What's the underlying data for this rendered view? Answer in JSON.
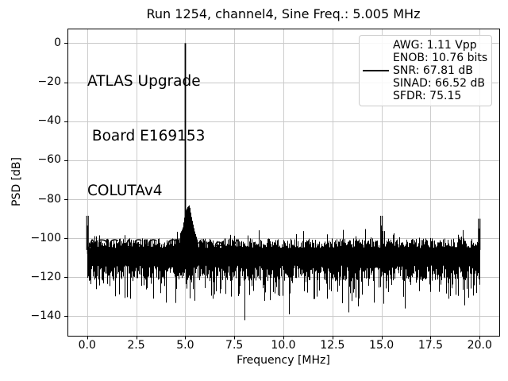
{
  "figure": {
    "background": "#ffffff",
    "text_color": "#000000"
  },
  "chart_data": {
    "type": "line",
    "title": "Run 1254, channel4, Sine Freq.: 5.005 MHz",
    "xlabel": "Frequency [MHz]",
    "ylabel": "PSD [dB]",
    "xlim": [
      -1,
      21
    ],
    "ylim": [
      -150,
      7.5
    ],
    "grid": true,
    "grid_color": "#c8c8c8",
    "line_color": "#000000",
    "xticks": {
      "values": [
        0,
        2.5,
        5,
        7.5,
        10,
        12.5,
        15,
        17.5,
        20
      ],
      "labels": [
        "0.0",
        "2.5",
        "5.0",
        "7.5",
        "10.0",
        "12.5",
        "15.0",
        "17.5",
        "20.0"
      ]
    },
    "yticks": {
      "values": [
        0,
        -20,
        -40,
        -60,
        -80,
        -100,
        -120,
        -140
      ],
      "labels": [
        "0",
        "−20",
        "−40",
        "−60",
        "−80",
        "−100",
        "−120",
        "−140"
      ]
    },
    "signal_peak": {
      "freq_mhz": 5.005,
      "peak_db": 0,
      "skirt_profile": [
        [
          -0.3,
          -98
        ],
        [
          -0.15,
          -95
        ],
        [
          -0.07,
          -90
        ],
        [
          0,
          -86
        ],
        [
          0.1,
          -84
        ],
        [
          0.2,
          -83
        ],
        [
          0.3,
          -89
        ],
        [
          0.45,
          -96
        ],
        [
          0.6,
          -101
        ]
      ]
    },
    "noise_floor": {
      "mean_db": -110,
      "top_db_mean": -102.5,
      "top_db_jitter": 2.5,
      "core_bottom_db": -114,
      "spike_bottom_db_max": -135
    },
    "spurs": [
      {
        "freq_mhz": 0.02,
        "db": -93.5
      },
      {
        "freq_mhz": 15.0,
        "db": -93.5
      },
      {
        "freq_mhz": 19.98,
        "db": -95
      }
    ],
    "deep_dips": [
      {
        "freq_mhz": 2.2,
        "db": -131
      },
      {
        "freq_mhz": 4.0,
        "db": -133
      },
      {
        "freq_mhz": 6.4,
        "db": -131
      },
      {
        "freq_mhz": 8.0,
        "db": -142
      },
      {
        "freq_mhz": 10.3,
        "db": -139
      },
      {
        "freq_mhz": 13.3,
        "db": -138
      },
      {
        "freq_mhz": 14.6,
        "db": -133
      },
      {
        "freq_mhz": 16.2,
        "db": -136
      },
      {
        "freq_mhz": 18.4,
        "db": -131
      }
    ],
    "metrics": {
      "AWG_Vpp": 1.11,
      "ENOB_bits": 10.76,
      "SNR_dB": 67.81,
      "SINAD_dB": 66.52,
      "SFDR": 75.15
    },
    "rng_seed": 1254
  },
  "annotation": {
    "lines": [
      "ATLAS Upgrade",
      " Board E169153",
      "COLUTAv4",
      "ADC ASIC, Channel 4"
    ]
  },
  "legend": {
    "entries": [
      {
        "label": "AWG: 1.11 Vpp",
        "has_line": false
      },
      {
        "label": "ENOB: 10.76 bits",
        "has_line": false
      },
      {
        "label": "SNR: 67.81 dB",
        "has_line": true
      },
      {
        "label": "SINAD: 66.52 dB",
        "has_line": false
      },
      {
        "label": "SFDR: 75.15",
        "has_line": false
      }
    ]
  }
}
